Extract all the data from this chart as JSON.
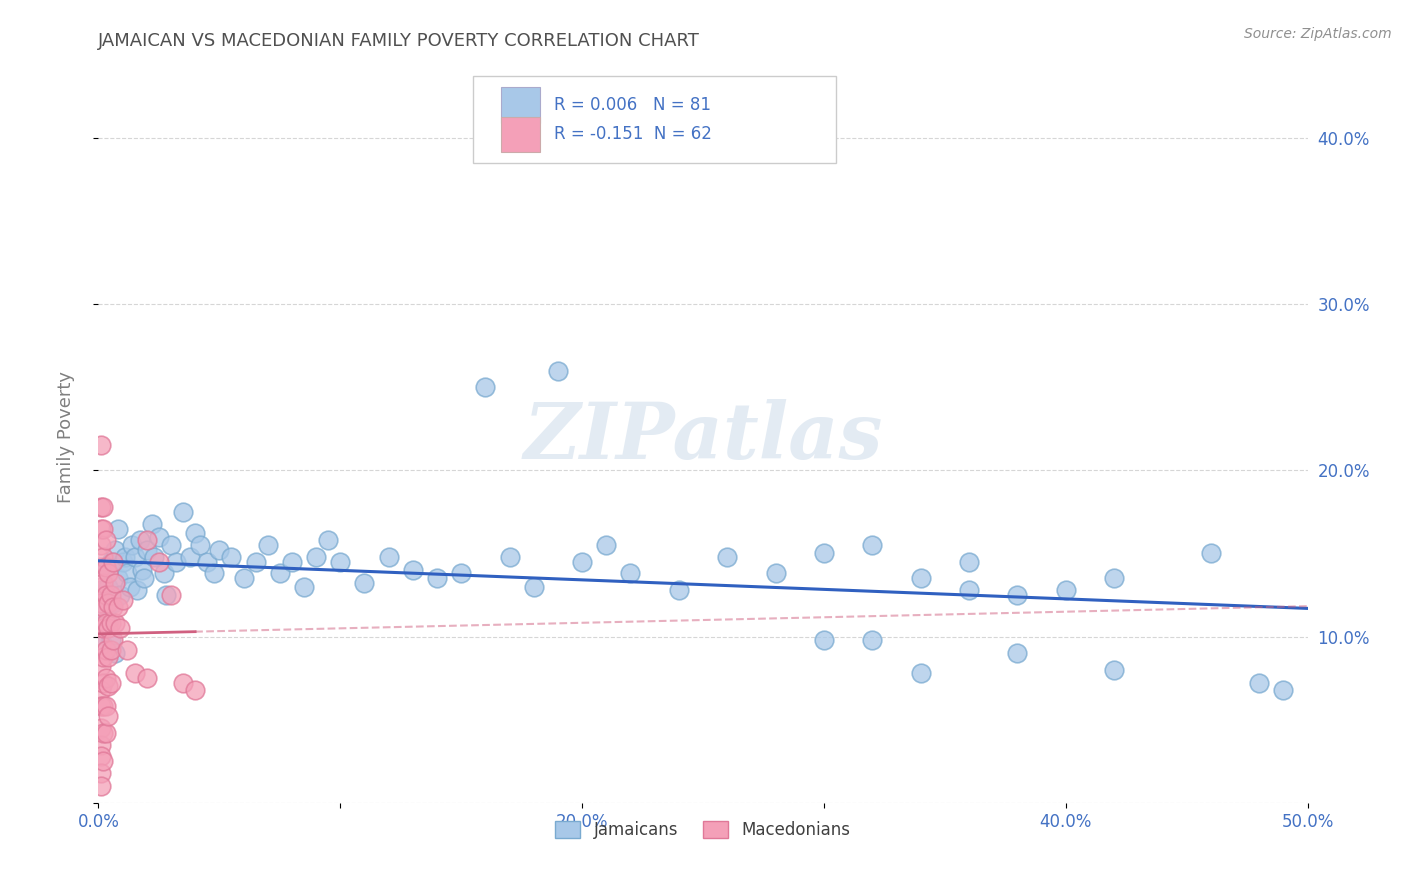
{
  "title": "JAMAICAN VS MACEDONIAN FAMILY POVERTY CORRELATION CHART",
  "source": "Source: ZipAtlas.com",
  "ylabel": "Family Poverty",
  "xlim": [
    0.0,
    0.5
  ],
  "ylim": [
    0.0,
    0.44
  ],
  "xticks": [
    0.0,
    0.1,
    0.2,
    0.3,
    0.4,
    0.5
  ],
  "xticklabels": [
    "0.0%",
    "",
    "20.0%",
    "",
    "40.0%",
    "50.0%"
  ],
  "yticks": [
    0.0,
    0.1,
    0.2,
    0.3,
    0.4
  ],
  "yticklabels_right": [
    "",
    "10.0%",
    "20.0%",
    "30.0%",
    "40.0%"
  ],
  "legend_row1": "R = 0.006   N = 81",
  "legend_row2": "R = -0.151  N = 62",
  "jamaican_color": "#a8c8e8",
  "macedonian_color": "#f4a0b8",
  "jamaican_edge_color": "#7aaad0",
  "macedonian_edge_color": "#e07898",
  "jamaican_line_color": "#3060c0",
  "macedonian_line_color": "#d06080",
  "watermark": "ZIPatlas",
  "background_color": "#ffffff",
  "grid_color": "#cccccc",
  "title_color": "#505050",
  "axis_label_color": "#808080",
  "tick_color": "#4472c4",
  "jamaican_scatter": [
    [
      0.001,
      0.128
    ],
    [
      0.002,
      0.095
    ],
    [
      0.003,
      0.115
    ],
    [
      0.003,
      0.142
    ],
    [
      0.004,
      0.13
    ],
    [
      0.004,
      0.108
    ],
    [
      0.005,
      0.145
    ],
    [
      0.005,
      0.098
    ],
    [
      0.006,
      0.145
    ],
    [
      0.006,
      0.12
    ],
    [
      0.007,
      0.152
    ],
    [
      0.007,
      0.09
    ],
    [
      0.008,
      0.135
    ],
    [
      0.008,
      0.165
    ],
    [
      0.009,
      0.125
    ],
    [
      0.01,
      0.145
    ],
    [
      0.011,
      0.148
    ],
    [
      0.012,
      0.138
    ],
    [
      0.013,
      0.13
    ],
    [
      0.014,
      0.155
    ],
    [
      0.015,
      0.148
    ],
    [
      0.016,
      0.128
    ],
    [
      0.017,
      0.158
    ],
    [
      0.018,
      0.14
    ],
    [
      0.019,
      0.135
    ],
    [
      0.02,
      0.152
    ],
    [
      0.022,
      0.168
    ],
    [
      0.023,
      0.148
    ],
    [
      0.025,
      0.16
    ],
    [
      0.027,
      0.138
    ],
    [
      0.028,
      0.125
    ],
    [
      0.03,
      0.155
    ],
    [
      0.032,
      0.145
    ],
    [
      0.035,
      0.175
    ],
    [
      0.038,
      0.148
    ],
    [
      0.04,
      0.162
    ],
    [
      0.042,
      0.155
    ],
    [
      0.045,
      0.145
    ],
    [
      0.048,
      0.138
    ],
    [
      0.05,
      0.152
    ],
    [
      0.055,
      0.148
    ],
    [
      0.06,
      0.135
    ],
    [
      0.065,
      0.145
    ],
    [
      0.07,
      0.155
    ],
    [
      0.075,
      0.138
    ],
    [
      0.08,
      0.145
    ],
    [
      0.085,
      0.13
    ],
    [
      0.09,
      0.148
    ],
    [
      0.095,
      0.158
    ],
    [
      0.1,
      0.145
    ],
    [
      0.11,
      0.132
    ],
    [
      0.12,
      0.148
    ],
    [
      0.13,
      0.14
    ],
    [
      0.14,
      0.135
    ],
    [
      0.15,
      0.138
    ],
    [
      0.16,
      0.25
    ],
    [
      0.17,
      0.148
    ],
    [
      0.18,
      0.13
    ],
    [
      0.19,
      0.26
    ],
    [
      0.2,
      0.145
    ],
    [
      0.21,
      0.155
    ],
    [
      0.22,
      0.138
    ],
    [
      0.24,
      0.128
    ],
    [
      0.26,
      0.148
    ],
    [
      0.28,
      0.138
    ],
    [
      0.3,
      0.15
    ],
    [
      0.32,
      0.155
    ],
    [
      0.34,
      0.135
    ],
    [
      0.36,
      0.145
    ],
    [
      0.38,
      0.125
    ],
    [
      0.4,
      0.128
    ],
    [
      0.42,
      0.135
    ],
    [
      0.32,
      0.098
    ],
    [
      0.34,
      0.078
    ],
    [
      0.36,
      0.128
    ],
    [
      0.38,
      0.09
    ],
    [
      0.3,
      0.098
    ],
    [
      0.42,
      0.08
    ],
    [
      0.46,
      0.15
    ],
    [
      0.48,
      0.072
    ],
    [
      0.49,
      0.068
    ]
  ],
  "macedonian_scatter": [
    [
      0.001,
      0.215
    ],
    [
      0.001,
      0.178
    ],
    [
      0.001,
      0.165
    ],
    [
      0.001,
      0.155
    ],
    [
      0.001,
      0.142
    ],
    [
      0.001,
      0.13
    ],
    [
      0.001,
      0.12
    ],
    [
      0.001,
      0.108
    ],
    [
      0.001,
      0.095
    ],
    [
      0.001,
      0.082
    ],
    [
      0.001,
      0.068
    ],
    [
      0.001,
      0.058
    ],
    [
      0.001,
      0.045
    ],
    [
      0.001,
      0.035
    ],
    [
      0.001,
      0.028
    ],
    [
      0.001,
      0.018
    ],
    [
      0.001,
      0.01
    ],
    [
      0.002,
      0.178
    ],
    [
      0.002,
      0.165
    ],
    [
      0.002,
      0.148
    ],
    [
      0.002,
      0.132
    ],
    [
      0.002,
      0.118
    ],
    [
      0.002,
      0.105
    ],
    [
      0.002,
      0.088
    ],
    [
      0.002,
      0.072
    ],
    [
      0.002,
      0.058
    ],
    [
      0.002,
      0.042
    ],
    [
      0.002,
      0.025
    ],
    [
      0.003,
      0.158
    ],
    [
      0.003,
      0.142
    ],
    [
      0.003,
      0.125
    ],
    [
      0.003,
      0.108
    ],
    [
      0.003,
      0.092
    ],
    [
      0.003,
      0.075
    ],
    [
      0.003,
      0.058
    ],
    [
      0.003,
      0.042
    ],
    [
      0.004,
      0.138
    ],
    [
      0.004,
      0.12
    ],
    [
      0.004,
      0.105
    ],
    [
      0.004,
      0.088
    ],
    [
      0.004,
      0.07
    ],
    [
      0.004,
      0.052
    ],
    [
      0.005,
      0.125
    ],
    [
      0.005,
      0.108
    ],
    [
      0.005,
      0.092
    ],
    [
      0.005,
      0.072
    ],
    [
      0.006,
      0.145
    ],
    [
      0.006,
      0.118
    ],
    [
      0.006,
      0.098
    ],
    [
      0.007,
      0.132
    ],
    [
      0.007,
      0.108
    ],
    [
      0.008,
      0.118
    ],
    [
      0.009,
      0.105
    ],
    [
      0.01,
      0.122
    ],
    [
      0.012,
      0.092
    ],
    [
      0.015,
      0.078
    ],
    [
      0.02,
      0.158
    ],
    [
      0.02,
      0.075
    ],
    [
      0.025,
      0.145
    ],
    [
      0.03,
      0.125
    ],
    [
      0.035,
      0.072
    ],
    [
      0.04,
      0.068
    ]
  ]
}
